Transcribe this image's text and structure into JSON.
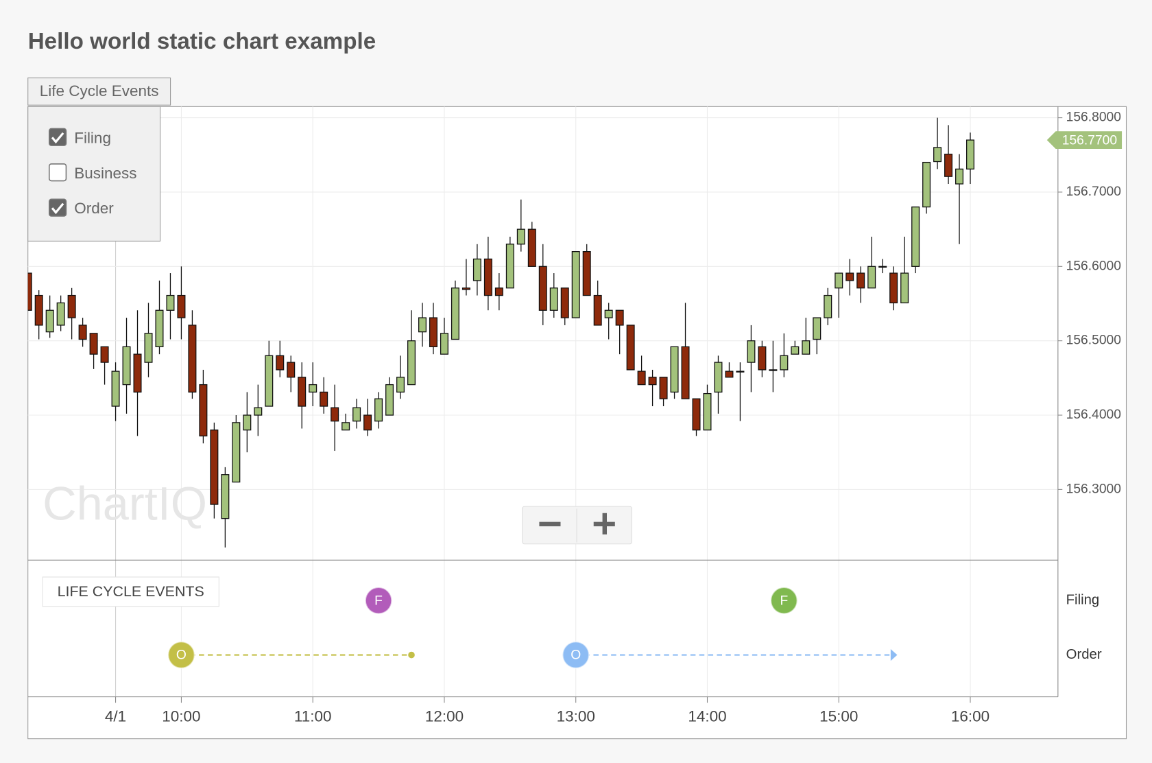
{
  "page": {
    "title": "Hello world static chart example",
    "button": "Life Cycle Events",
    "menu": [
      {
        "label": "Filing",
        "checked": true
      },
      {
        "label": "Business",
        "checked": false
      },
      {
        "label": "Order",
        "checked": true
      }
    ],
    "watermark": "ChartIQ",
    "panel_title": "LIFE CYCLE EVENTS"
  },
  "chart_data": {
    "type": "candlestick",
    "x": [
      "08:50",
      "08:55",
      "09:00",
      "09:05",
      "09:10",
      "09:15",
      "09:20",
      "09:25",
      "09:30",
      "09:35",
      "09:40",
      "09:45",
      "09:50",
      "09:55",
      "10:00",
      "10:05",
      "10:10",
      "10:15",
      "10:20",
      "10:25",
      "10:30",
      "10:35",
      "10:40",
      "10:45",
      "10:50",
      "10:55",
      "11:00",
      "11:05",
      "11:10",
      "11:15",
      "11:20",
      "11:25",
      "11:30",
      "11:35",
      "11:40",
      "11:45",
      "11:50",
      "11:55",
      "12:00",
      "12:05",
      "12:10",
      "12:15",
      "12:20",
      "12:25",
      "12:30",
      "12:35",
      "12:40",
      "12:45",
      "12:50",
      "12:55",
      "13:00",
      "13:05",
      "13:10",
      "13:15",
      "13:20",
      "13:25",
      "13:30",
      "13:35",
      "13:40",
      "13:45",
      "13:50",
      "13:55",
      "14:00",
      "14:05",
      "14:10",
      "14:15",
      "14:20",
      "14:25",
      "14:30",
      "14:35",
      "14:40",
      "14:45",
      "14:50",
      "14:55",
      "15:00",
      "15:05",
      "15:10",
      "15:15",
      "15:20",
      "15:25",
      "15:30",
      "15:35",
      "15:40",
      "15:45",
      "15:50",
      "15:55",
      "16:00"
    ],
    "open": [
      156.591,
      156.561,
      156.512,
      156.521,
      156.561,
      156.521,
      156.51,
      156.492,
      156.412,
      156.441,
      156.482,
      156.471,
      156.492,
      156.541,
      156.561,
      156.521,
      156.441,
      156.38,
      156.261,
      156.31,
      156.38,
      156.4,
      156.412,
      156.48,
      156.471,
      156.451,
      156.431,
      156.431,
      156.41,
      156.38,
      156.392,
      156.4,
      156.392,
      156.4,
      156.431,
      156.441,
      156.512,
      156.531,
      156.482,
      156.502,
      156.571,
      156.581,
      156.61,
      156.571,
      156.571,
      156.63,
      156.65,
      156.6,
      156.541,
      156.571,
      156.531,
      156.62,
      156.561,
      156.531,
      156.541,
      156.521,
      156.459,
      156.451,
      156.451,
      156.431,
      156.492,
      156.422,
      156.38,
      156.431,
      156.459,
      156.459,
      156.471,
      156.492,
      156.461,
      156.461,
      156.482,
      156.482,
      156.502,
      156.531,
      156.571,
      156.591,
      156.591,
      156.571,
      156.6,
      156.591,
      156.551,
      156.6,
      156.68,
      156.741,
      156.751,
      156.711,
      156.731
    ],
    "high": [
      156.591,
      156.568,
      156.561,
      156.561,
      156.571,
      156.531,
      156.51,
      156.492,
      156.471,
      156.531,
      156.541,
      156.551,
      156.581,
      156.591,
      156.6,
      156.541,
      156.461,
      156.39,
      156.33,
      156.4,
      156.431,
      156.441,
      156.5,
      156.5,
      156.48,
      156.471,
      156.471,
      156.451,
      156.441,
      156.402,
      156.422,
      156.422,
      156.431,
      156.451,
      156.48,
      156.541,
      156.551,
      156.551,
      156.531,
      156.581,
      156.61,
      156.63,
      156.64,
      156.591,
      156.64,
      156.69,
      156.66,
      156.63,
      156.591,
      156.571,
      156.62,
      156.63,
      156.581,
      156.551,
      156.541,
      156.521,
      156.48,
      156.461,
      156.451,
      156.492,
      156.551,
      156.422,
      156.441,
      156.48,
      156.471,
      156.471,
      156.521,
      156.5,
      156.5,
      156.51,
      156.5,
      156.531,
      156.531,
      156.571,
      156.591,
      156.61,
      156.6,
      156.64,
      156.61,
      156.6,
      156.64,
      156.68,
      156.74,
      156.8,
      156.79,
      156.751,
      156.78
    ],
    "low": [
      156.541,
      156.502,
      156.504,
      156.513,
      156.502,
      156.492,
      156.462,
      156.441,
      156.392,
      156.402,
      156.372,
      156.451,
      156.482,
      156.502,
      156.502,
      156.422,
      156.362,
      156.261,
      156.222,
      156.31,
      156.35,
      156.372,
      156.412,
      156.451,
      156.431,
      156.382,
      156.412,
      156.402,
      156.352,
      156.38,
      156.382,
      156.372,
      156.382,
      156.4,
      156.422,
      156.441,
      156.492,
      156.482,
      156.482,
      156.502,
      156.561,
      156.561,
      156.541,
      156.541,
      156.571,
      156.62,
      156.6,
      156.521,
      156.531,
      156.521,
      156.531,
      156.561,
      156.521,
      156.502,
      156.482,
      156.461,
      156.441,
      156.412,
      156.412,
      156.422,
      156.422,
      156.372,
      156.38,
      156.402,
      156.451,
      156.392,
      156.431,
      156.451,
      156.431,
      156.451,
      156.482,
      156.482,
      156.482,
      156.521,
      156.531,
      156.561,
      156.551,
      156.571,
      156.591,
      156.541,
      156.551,
      156.591,
      156.671,
      156.731,
      156.711,
      156.63,
      156.711
    ],
    "close": [
      156.541,
      156.521,
      156.541,
      156.551,
      156.531,
      156.502,
      156.482,
      156.471,
      156.459,
      156.492,
      156.431,
      156.51,
      156.541,
      156.561,
      156.531,
      156.431,
      156.372,
      156.28,
      156.32,
      156.39,
      156.4,
      156.41,
      156.48,
      156.461,
      156.451,
      156.412,
      156.441,
      156.412,
      156.392,
      156.39,
      156.41,
      156.38,
      156.422,
      156.441,
      156.451,
      156.5,
      156.531,
      156.492,
      156.51,
      156.571,
      156.569,
      156.61,
      156.561,
      156.561,
      156.63,
      156.65,
      156.6,
      156.541,
      156.571,
      156.531,
      156.62,
      156.561,
      156.521,
      156.541,
      156.521,
      156.461,
      156.441,
      156.441,
      156.422,
      156.492,
      156.422,
      156.38,
      156.429,
      156.471,
      156.451,
      156.458,
      156.5,
      156.461,
      156.46,
      156.48,
      156.492,
      156.5,
      156.531,
      156.561,
      156.591,
      156.581,
      156.571,
      156.6,
      156.599,
      156.551,
      156.591,
      156.68,
      156.74,
      156.76,
      156.721,
      156.731,
      156.77
    ],
    "up_color": "#a3c27c",
    "down_color": "#8e2a0b",
    "xlim": [
      "08:50",
      "16:40"
    ],
    "xticks": [
      {
        "value": "09:30",
        "label": "4/1"
      },
      "10:00",
      "11:00",
      "12:00",
      "13:00",
      "14:00",
      "15:00",
      "16:00"
    ],
    "ylim": [
      156.205,
      156.815
    ],
    "yticks": [
      {
        "value": 156.8,
        "label": "156.8000"
      },
      {
        "value": 156.7,
        "label": "156.7000"
      },
      {
        "value": 156.6,
        "label": "156.6000"
      },
      {
        "value": 156.5,
        "label": "156.5000"
      },
      {
        "value": 156.4,
        "label": "156.4000"
      },
      {
        "value": 156.3,
        "label": "156.3000"
      }
    ],
    "grid": true,
    "last_price": {
      "value": 156.77,
      "label": "156.7700"
    },
    "last_price_color": "#a3c27c",
    "events": [
      {
        "name": "Filing",
        "markers": [
          {
            "label": "F",
            "x": "11:30",
            "color": "#b25cba"
          },
          {
            "label": "F",
            "x": "14:35",
            "color": "#80b94f"
          }
        ]
      },
      {
        "name": "Order",
        "markers": [
          {
            "label": "O",
            "x": "10:00",
            "end": "11:45",
            "color": "#c3bf47",
            "end_style": "dot"
          },
          {
            "label": "O",
            "x": "13:00",
            "end": "15:25",
            "color": "#8dbcf4",
            "end_style": "arrow"
          }
        ]
      }
    ]
  }
}
